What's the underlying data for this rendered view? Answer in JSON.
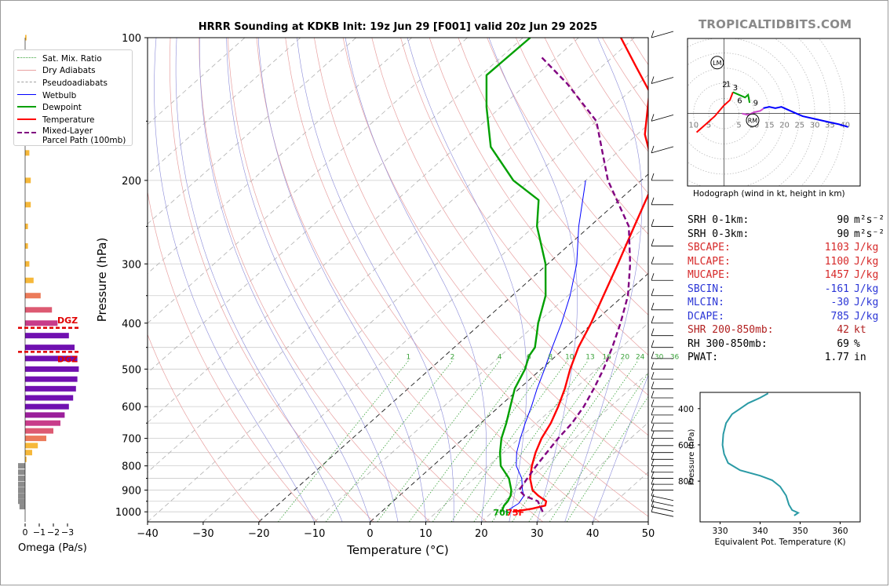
{
  "brand": "TROPICALTIDBITS.COM",
  "title": "HRRR Sounding at KDKB Init: 19z Jun 29 [F001] valid 20z Jun 29 2025",
  "skewt": {
    "xlabel": "Temperature (°C)",
    "ylabel": "Pressure (hPa)",
    "x_ticks": [
      -40,
      -30,
      -20,
      -10,
      0,
      10,
      20,
      30,
      40,
      50
    ],
    "y_ticks": [
      100,
      200,
      300,
      400,
      500,
      600,
      700,
      800,
      900,
      1000
    ],
    "legend": [
      {
        "label": "Sat. Mix. Ratio",
        "color": "#3aa23a",
        "style": "dotted"
      },
      {
        "label": "Dry Adiabats",
        "color": "#e8a0a0",
        "style": "solid"
      },
      {
        "label": "Pseudoadiabats",
        "color": "#a0a0a0",
        "style": "dashed"
      },
      {
        "label": "Wetbulb",
        "color": "#0000ff",
        "style": "solid"
      },
      {
        "label": "Dewpoint",
        "color": "#00a000",
        "style": "solid"
      },
      {
        "label": "Temperature",
        "color": "#ff0000",
        "style": "solid"
      },
      {
        "label": "Mixed-Layer\nParcel Path (100mb)",
        "color": "#800080",
        "style": "dashed"
      }
    ],
    "mixing_ratio_labels": [
      "1",
      "2",
      "4",
      "6",
      "8",
      "10",
      "13",
      "16",
      "20",
      "24",
      "30",
      "36"
    ],
    "surface_labels": {
      "dewpoint": "70F",
      "temperature": "75F"
    },
    "dgz_label": "DGZ"
  },
  "chart_data": [
    {
      "type": "line",
      "name": "skew-t",
      "x_unit": "°C",
      "y_unit": "hPa",
      "xlim": [
        -40,
        50
      ],
      "ylim": [
        1050,
        100
      ],
      "series": [
        {
          "name": "Temperature",
          "color": "#ff0000",
          "points": [
            [
              23.6,
              1000
            ],
            [
              26.5,
              985
            ],
            [
              28.2,
              970
            ],
            [
              27.5,
              950
            ],
            [
              25,
              925
            ],
            [
              22.8,
              900
            ],
            [
              20,
              850
            ],
            [
              17.8,
              800
            ],
            [
              15.8,
              750
            ],
            [
              14,
              700
            ],
            [
              12.6,
              650
            ],
            [
              10.6,
              600
            ],
            [
              8.2,
              550
            ],
            [
              5.2,
              500
            ],
            [
              2.3,
              450
            ],
            [
              -0.3,
              400
            ],
            [
              -3.6,
              350
            ],
            [
              -7.4,
              300
            ],
            [
              -12,
              250
            ],
            [
              -17.6,
              200
            ],
            [
              -22.6,
              180
            ],
            [
              -28.6,
              160
            ],
            [
              -36.4,
              130
            ],
            [
              -43.9,
              115
            ],
            [
              -52.4,
              100
            ]
          ]
        },
        {
          "name": "Dewpoint",
          "color": "#00a000",
          "points": [
            [
              21.6,
              1000
            ],
            [
              20.8,
              970
            ],
            [
              20.6,
              950
            ],
            [
              20,
              925
            ],
            [
              19,
              900
            ],
            [
              16.2,
              850
            ],
            [
              12.2,
              800
            ],
            [
              9.4,
              750
            ],
            [
              6.8,
              700
            ],
            [
              4.6,
              650
            ],
            [
              2,
              600
            ],
            [
              -0.8,
              550
            ],
            [
              -2.9,
              500
            ],
            [
              -4.8,
              470
            ],
            [
              -5.5,
              450
            ],
            [
              -8,
              420
            ],
            [
              -9.8,
              400
            ],
            [
              -14,
              350
            ],
            [
              -20.4,
              300
            ],
            [
              -29.5,
              250
            ],
            [
              -34.5,
              220
            ],
            [
              -43,
              200
            ],
            [
              -53.8,
              170
            ],
            [
              -62.6,
              140
            ],
            [
              -69,
              120
            ],
            [
              -68.7,
              100
            ]
          ]
        },
        {
          "name": "Wetbulb",
          "color": "#0000ff",
          "points": [
            [
              22.3,
              1000
            ],
            [
              23,
              960
            ],
            [
              22.4,
              925
            ],
            [
              21,
              900
            ],
            [
              18.5,
              850
            ],
            [
              15,
              800
            ],
            [
              12.4,
              750
            ],
            [
              10.2,
              700
            ],
            [
              8,
              650
            ],
            [
              5.8,
              600
            ],
            [
              3.2,
              550
            ],
            [
              0.6,
              500
            ],
            [
              -2.4,
              450
            ],
            [
              -5.6,
              400
            ],
            [
              -9.6,
              350
            ],
            [
              -14.8,
              300
            ],
            [
              -22,
              250
            ],
            [
              -30,
              200
            ]
          ]
        },
        {
          "name": "Mixed-Layer Parcel Path (100mb)",
          "color": "#800080",
          "points": [
            [
              29,
              1000
            ],
            [
              26,
              950
            ],
            [
              22.5,
              925
            ],
            [
              20.4,
              900
            ],
            [
              19.5,
              850
            ],
            [
              18.6,
              800
            ],
            [
              17.8,
              750
            ],
            [
              17,
              700
            ],
            [
              16.4,
              650
            ],
            [
              15.2,
              600
            ],
            [
              13.4,
              550
            ],
            [
              11.2,
              500
            ],
            [
              8.4,
              450
            ],
            [
              5,
              400
            ],
            [
              0.8,
              350
            ],
            [
              -5.2,
              300
            ],
            [
              -13,
              250
            ],
            [
              -26,
              200
            ],
            [
              -40,
              150
            ],
            [
              -52.8,
              125
            ],
            [
              -62.7,
              110
            ]
          ]
        }
      ]
    },
    {
      "type": "bar",
      "name": "omega",
      "xlabel": "Omega (Pa/s)",
      "x_ticks": [
        "0",
        "−1",
        "−2",
        "−3"
      ],
      "bars": [
        {
          "p": 100,
          "omega": -0.1
        },
        {
          "p": 125,
          "omega": -0.3
        },
        {
          "p": 150,
          "omega": -0.3
        },
        {
          "p": 175,
          "omega": -0.3
        },
        {
          "p": 200,
          "omega": -0.4
        },
        {
          "p": 225,
          "omega": -0.4
        },
        {
          "p": 250,
          "omega": -0.2
        },
        {
          "p": 275,
          "omega": -0.2
        },
        {
          "p": 300,
          "omega": -0.3
        },
        {
          "p": 325,
          "omega": -0.6
        },
        {
          "p": 350,
          "omega": -1.1
        },
        {
          "p": 375,
          "omega": -1.9
        },
        {
          "p": 400,
          "omega": -2.3
        },
        {
          "p": 425,
          "omega": -3.1
        },
        {
          "p": 450,
          "omega": -3.5
        },
        {
          "p": 475,
          "omega": -3.7
        },
        {
          "p": 500,
          "omega": -3.8
        },
        {
          "p": 525,
          "omega": -3.7
        },
        {
          "p": 550,
          "omega": -3.6
        },
        {
          "p": 575,
          "omega": -3.4
        },
        {
          "p": 600,
          "omega": -3.1
        },
        {
          "p": 625,
          "omega": -2.8
        },
        {
          "p": 650,
          "omega": -2.5
        },
        {
          "p": 675,
          "omega": -2
        },
        {
          "p": 700,
          "omega": -1.5
        },
        {
          "p": 725,
          "omega": -0.9
        },
        {
          "p": 750,
          "omega": -0.5
        },
        {
          "p": 775,
          "omega": -0.1
        },
        {
          "p": 800,
          "omega": 0.5
        },
        {
          "p": 825,
          "omega": 0.5
        },
        {
          "p": 850,
          "omega": 0.5
        },
        {
          "p": 875,
          "omega": 0.5
        },
        {
          "p": 900,
          "omega": 0.5
        },
        {
          "p": 925,
          "omega": 0.5
        },
        {
          "p": 950,
          "omega": 0.5
        },
        {
          "p": 975,
          "omega": 0.4
        }
      ],
      "dgz_top_hPa": 400,
      "dgz_bottom_hPa": 460
    },
    {
      "type": "line",
      "name": "hodograph",
      "xlim": [
        -12,
        45
      ],
      "ylim": [
        -27,
        28
      ],
      "rings": [
        5,
        10,
        15,
        20,
        25,
        30,
        35,
        40
      ],
      "ring_labels": [
        "10",
        "5",
        "5",
        "10",
        "15",
        "20",
        "25",
        "30",
        "35",
        "40"
      ],
      "height_labels": [
        "1",
        "2",
        "3",
        "6",
        "9"
      ],
      "markers": [
        "LM",
        "RM"
      ],
      "segments": [
        {
          "color": "#ff0000",
          "points": [
            [
              -9,
              -7
            ],
            [
              -6,
              -4
            ],
            [
              -3,
              -1
            ],
            [
              0,
              3
            ],
            [
              2,
              5
            ],
            [
              3,
              8
            ]
          ]
        },
        {
          "color": "#00a000",
          "points": [
            [
              3,
              8
            ],
            [
              5,
              7
            ],
            [
              7,
              6
            ],
            [
              8,
              7
            ],
            [
              8.5,
              4
            ]
          ]
        },
        {
          "color": "#cc44cc",
          "points": [
            [
              6,
              0
            ],
            [
              8,
              -0.5
            ],
            [
              10,
              0.5
            ],
            [
              12,
              1
            ],
            [
              13,
              1.8
            ]
          ]
        },
        {
          "color": "#0000ff",
          "points": [
            [
              13,
              2
            ],
            [
              15,
              2.5
            ],
            [
              17,
              2
            ],
            [
              19,
              2.5
            ],
            [
              22,
              1
            ],
            [
              26,
              -1
            ],
            [
              30,
              -2
            ],
            [
              34,
              -3
            ],
            [
              38,
              -4
            ],
            [
              41,
              -5
            ]
          ]
        }
      ]
    },
    {
      "type": "line",
      "name": "equivalent-potential-temperature",
      "xlabel": "Equivalent Pot. Temperature (K)",
      "ylabel": "Pressure (hPa)",
      "x_ticks": [
        330,
        340,
        350,
        360
      ],
      "y_ticks": [
        400,
        600,
        800
      ],
      "xlim": [
        325,
        365
      ],
      "ylim": [
        1025,
        310
      ],
      "points": [
        [
          342,
          315
        ],
        [
          340,
          340
        ],
        [
          337,
          370
        ],
        [
          335,
          400
        ],
        [
          333,
          430
        ],
        [
          331.5,
          480
        ],
        [
          330.8,
          540
        ],
        [
          330.6,
          600
        ],
        [
          331,
          650
        ],
        [
          332,
          700
        ],
        [
          335,
          740
        ],
        [
          340,
          770
        ],
        [
          343,
          795
        ],
        [
          345,
          830
        ],
        [
          346.5,
          880
        ],
        [
          347.2,
          930
        ],
        [
          348,
          960
        ],
        [
          349.5,
          975
        ],
        [
          348.5,
          990
        ]
      ]
    }
  ],
  "hodograph": {
    "caption": "Hodograph (wind in kt, height in km)"
  },
  "stats": [
    {
      "label": "SRH 0-1km:",
      "value": "90",
      "unit": "m²s⁻²",
      "color": "#000000"
    },
    {
      "label": "SRH 0-3km:",
      "value": "90",
      "unit": "m²s⁻²",
      "color": "#000000"
    },
    {
      "label": "SBCAPE:",
      "value": "1103",
      "unit": "J/kg",
      "color": "#d62828"
    },
    {
      "label": "MLCAPE:",
      "value": "1100",
      "unit": "J/kg",
      "color": "#d62828"
    },
    {
      "label": "MUCAPE:",
      "value": "1457",
      "unit": "J/kg",
      "color": "#d62828"
    },
    {
      "label": "SBCIN:",
      "value": "-161",
      "unit": "J/kg",
      "color": "#2a35d6"
    },
    {
      "label": "MLCIN:",
      "value": "-30",
      "unit": "J/kg",
      "color": "#2a35d6"
    },
    {
      "label": "DCAPE:",
      "value": "785",
      "unit": "J/kg",
      "color": "#2a35d6"
    },
    {
      "label": "SHR 200-850mb:",
      "value": "42",
      "unit": "kt",
      "color": "#b22020"
    },
    {
      "label": "RH 300-850mb:",
      "value": "69",
      "unit": "%",
      "color": "#000000"
    },
    {
      "label": "PWAT:",
      "value": "1.77",
      "unit": "in",
      "color": "#000000"
    }
  ]
}
